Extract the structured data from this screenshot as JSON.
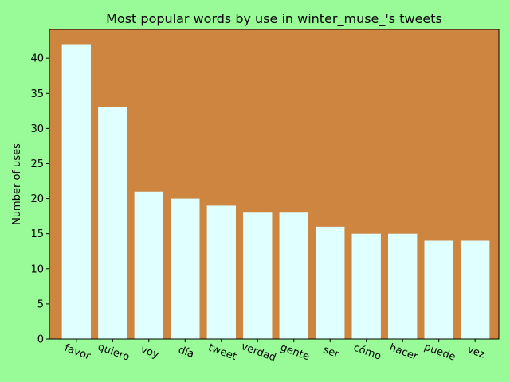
{
  "colors": {
    "page_background": "#98fb98",
    "plot_background": "#cd853f",
    "bar_fill": "#e0ffff",
    "axis": "#000000"
  },
  "chart_data": {
    "type": "bar",
    "title": "Most popular words by use in winter_muse_'s tweets",
    "xlabel": "",
    "ylabel": "Number of uses",
    "categories": [
      "favor",
      "quiero",
      "voy",
      "día",
      "tweet",
      "verdad",
      "gente",
      "ser",
      "cómo",
      "hacer",
      "puede",
      "vez"
    ],
    "values": [
      42,
      33,
      21,
      20,
      19,
      18,
      18,
      16,
      15,
      15,
      14,
      14
    ],
    "ylim": [
      0,
      44.1
    ],
    "yticks": [
      0,
      5,
      10,
      15,
      20,
      25,
      30,
      35,
      40
    ],
    "x_tick_rotation": "slanted",
    "grid": false,
    "legend": "none"
  }
}
